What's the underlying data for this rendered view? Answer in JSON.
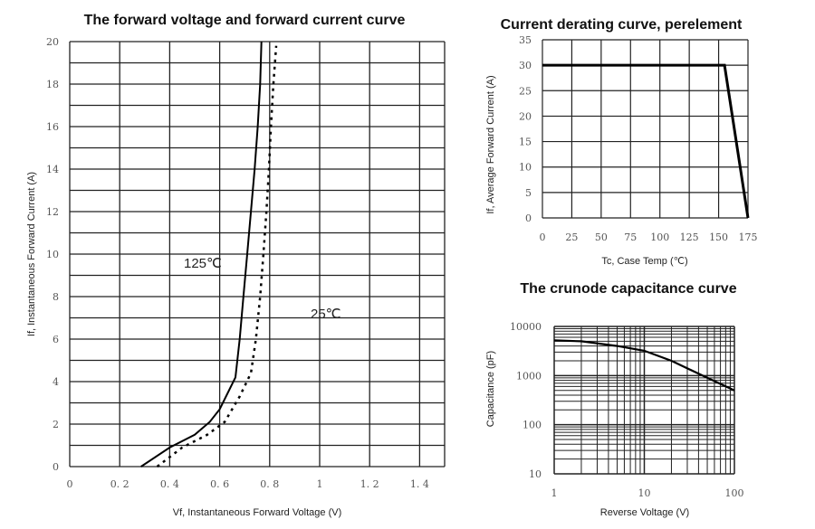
{
  "chart_data": [
    {
      "type": "line",
      "title": "The forward voltage and forward current curve",
      "xlabel": "Vf, Instantaneous Forward Voltage (V)",
      "ylabel": "If, Instantaneous Forward Current (A)",
      "xlim": [
        0,
        1.5
      ],
      "ylim": [
        0,
        20
      ],
      "xticks": [
        0,
        0.2,
        0.4,
        0.6,
        0.8,
        1,
        1.2,
        1.4
      ],
      "xtick_labels": [
        "0",
        "0. 2",
        "0. 4",
        "0. 6",
        "0. 8",
        "1",
        "1. 2",
        "1. 4"
      ],
      "yticks": [
        0,
        2,
        4,
        6,
        8,
        10,
        12,
        14,
        16,
        18,
        20
      ],
      "grid": true,
      "series": [
        {
          "name": "125℃",
          "style": "solid",
          "x": [
            0.285,
            0.4,
            0.5,
            0.56,
            0.6,
            0.663,
            0.68,
            0.695,
            0.71,
            0.725,
            0.74,
            0.752,
            0.762,
            0.767
          ],
          "y": [
            0,
            0.9,
            1.5,
            2.1,
            2.7,
            4.2,
            6,
            8,
            10,
            12,
            14,
            16,
            18,
            20
          ]
        },
        {
          "name": "25℃",
          "style": "dotted",
          "x": [
            0.35,
            0.45,
            0.55,
            0.62,
            0.68,
            0.725,
            0.745,
            0.762,
            0.775,
            0.787,
            0.797,
            0.805,
            0.815,
            0.826
          ],
          "y": [
            0,
            0.9,
            1.5,
            2.1,
            3.3,
            4.4,
            6,
            8,
            10,
            12,
            14,
            16,
            18,
            19.8
          ]
        }
      ]
    },
    {
      "type": "line",
      "title": "Current derating curve, perelement",
      "xlabel": "Tc, Case Temp (℃)",
      "ylabel": "If, Average Forward Current (A)",
      "xlim": [
        0,
        175
      ],
      "ylim": [
        0,
        35
      ],
      "xticks": [
        0,
        25,
        50,
        75,
        100,
        125,
        150,
        175
      ],
      "yticks": [
        0,
        5,
        10,
        15,
        20,
        25,
        30,
        35
      ],
      "grid": true,
      "series": [
        {
          "x": [
            0,
            155,
            175
          ],
          "y": [
            30,
            30,
            0
          ]
        }
      ]
    },
    {
      "type": "line",
      "title": "The crunode capacitance curve",
      "xlabel": "Reverse Voltage (V)",
      "ylabel": "Capacitance (pF)",
      "xscale": "log",
      "yscale": "log",
      "xlim": [
        1,
        100
      ],
      "ylim": [
        10,
        10000
      ],
      "xticks": [
        1,
        10,
        100
      ],
      "yticks": [
        10,
        100,
        1000,
        10000
      ],
      "grid": true,
      "series": [
        {
          "x": [
            1,
            2,
            5,
            10,
            20,
            50,
            100
          ],
          "y": [
            5200,
            5000,
            4000,
            3200,
            2000,
            900,
            500
          ]
        }
      ]
    }
  ],
  "colors": {
    "line": "#000000",
    "grid": "#222222",
    "tick_text": "#555555"
  }
}
